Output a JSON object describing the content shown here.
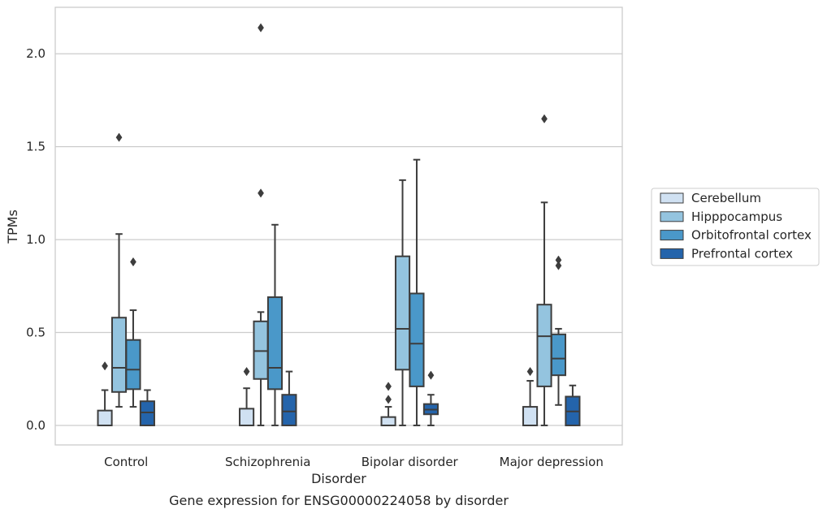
{
  "chart_data": {
    "type": "box",
    "xlabel": "Disorder",
    "ylabel": "TPMs",
    "caption": "Gene expression for ENSG00000224058 by disorder",
    "ylim": [
      -0.105,
      2.25
    ],
    "yticks": [
      "0.0",
      "0.5",
      "1.0",
      "1.5",
      "2.0"
    ],
    "grid": "horizontal",
    "legend_placement": "right, outside",
    "categories": [
      "Control",
      "Schizophrenia",
      "Bipolar disorder",
      "Major depression"
    ],
    "series": [
      {
        "name": "Cerebellum",
        "color": "#d0e1f2",
        "boxes": [
          {
            "category": "Control",
            "q1": 0.0,
            "median": 0.0,
            "q3": 0.08,
            "whisker_low": 0.0,
            "whisker_high": 0.19,
            "outliers": [
              0.32
            ]
          },
          {
            "category": "Schizophrenia",
            "q1": 0.0,
            "median": 0.0,
            "q3": 0.09,
            "whisker_low": 0.0,
            "whisker_high": 0.2,
            "outliers": [
              0.29
            ]
          },
          {
            "category": "Bipolar disorder",
            "q1": 0.0,
            "median": 0.0,
            "q3": 0.045,
            "whisker_low": 0.0,
            "whisker_high": 0.1,
            "outliers": [
              0.14,
              0.21
            ]
          },
          {
            "category": "Major depression",
            "q1": 0.0,
            "median": 0.0,
            "q3": 0.1,
            "whisker_low": 0.0,
            "whisker_high": 0.24,
            "outliers": [
              0.29
            ]
          }
        ]
      },
      {
        "name": "Hipppocampus",
        "color": "#94c4df",
        "boxes": [
          {
            "category": "Control",
            "q1": 0.18,
            "median": 0.31,
            "q3": 0.58,
            "whisker_low": 0.1,
            "whisker_high": 1.03,
            "outliers": [
              1.55
            ]
          },
          {
            "category": "Schizophrenia",
            "q1": 0.25,
            "median": 0.4,
            "q3": 0.56,
            "whisker_low": 0.0,
            "whisker_high": 0.61,
            "outliers": [
              1.25,
              2.14
            ]
          },
          {
            "category": "Bipolar disorder",
            "q1": 0.3,
            "median": 0.52,
            "q3": 0.91,
            "whisker_low": 0.0,
            "whisker_high": 1.32,
            "outliers": []
          },
          {
            "category": "Major depression",
            "q1": 0.21,
            "median": 0.48,
            "q3": 0.65,
            "whisker_low": 0.0,
            "whisker_high": 1.2,
            "outliers": [
              1.65
            ]
          }
        ]
      },
      {
        "name": "Orbitofrontal cortex",
        "color": "#4a98c9",
        "boxes": [
          {
            "category": "Control",
            "q1": 0.195,
            "median": 0.3,
            "q3": 0.46,
            "whisker_low": 0.1,
            "whisker_high": 0.62,
            "outliers": [
              0.88
            ]
          },
          {
            "category": "Schizophrenia",
            "q1": 0.195,
            "median": 0.31,
            "q3": 0.69,
            "whisker_low": 0.0,
            "whisker_high": 1.08,
            "outliers": []
          },
          {
            "category": "Bipolar disorder",
            "q1": 0.21,
            "median": 0.44,
            "q3": 0.71,
            "whisker_low": 0.0,
            "whisker_high": 1.43,
            "outliers": []
          },
          {
            "category": "Major depression",
            "q1": 0.27,
            "median": 0.36,
            "q3": 0.49,
            "whisker_low": 0.11,
            "whisker_high": 0.52,
            "outliers": [
              0.86,
              0.89
            ]
          }
        ]
      },
      {
        "name": "Prefrontal cortex",
        "color": "#2464ab",
        "boxes": [
          {
            "category": "Control",
            "q1": 0.0,
            "median": 0.07,
            "q3": 0.13,
            "whisker_low": 0.0,
            "whisker_high": 0.19,
            "outliers": []
          },
          {
            "category": "Schizophrenia",
            "q1": 0.0,
            "median": 0.075,
            "q3": 0.165,
            "whisker_low": 0.0,
            "whisker_high": 0.29,
            "outliers": []
          },
          {
            "category": "Bipolar disorder",
            "q1": 0.06,
            "median": 0.085,
            "q3": 0.115,
            "whisker_low": 0.0,
            "whisker_high": 0.165,
            "outliers": [
              0.27
            ]
          },
          {
            "category": "Major depression",
            "q1": 0.0,
            "median": 0.075,
            "q3": 0.155,
            "whisker_low": 0.0,
            "whisker_high": 0.215,
            "outliers": []
          }
        ]
      }
    ]
  }
}
